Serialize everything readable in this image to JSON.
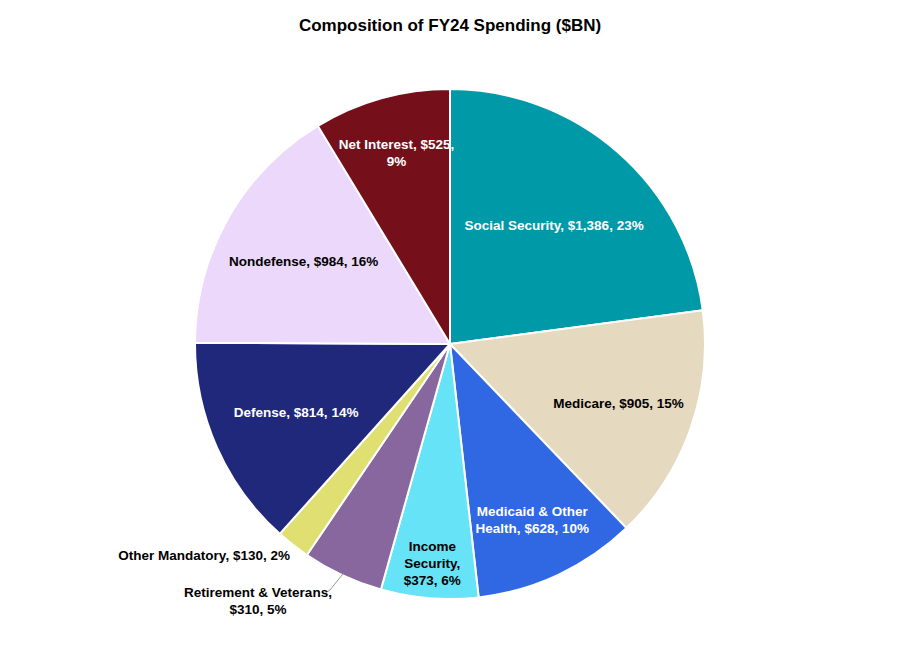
{
  "chart_data": {
    "type": "pie",
    "title": "Composition of FY24 Spending ($BN)",
    "categories": [
      "Social Security",
      "Medicare",
      "Medicaid & Other Health",
      "Income Security",
      "Retirement & Veterans",
      "Other Mandatory",
      "Defense",
      "Nondefense",
      "Net Interest"
    ],
    "values": [
      1386,
      905,
      628,
      373,
      310,
      130,
      814,
      984,
      525
    ],
    "value_labels": [
      "$1,386",
      "$905",
      "$628",
      "$373",
      "$310",
      "$130",
      "$814",
      "$984",
      "$525"
    ],
    "percentages": [
      23,
      15,
      10,
      6,
      5,
      2,
      14,
      16,
      9
    ],
    "percent_labels": [
      "23%",
      "15%",
      "10%",
      "6%",
      "5%",
      "2%",
      "14%",
      "16%",
      "9%"
    ],
    "colors": [
      "#0099a8",
      "#e5d9c0",
      "#2f68e2",
      "#66e3f7",
      "#88679e",
      "#dfdf72",
      "#1f287a",
      "#ecd8fa",
      "#75101a"
    ],
    "data_labels": true
  }
}
